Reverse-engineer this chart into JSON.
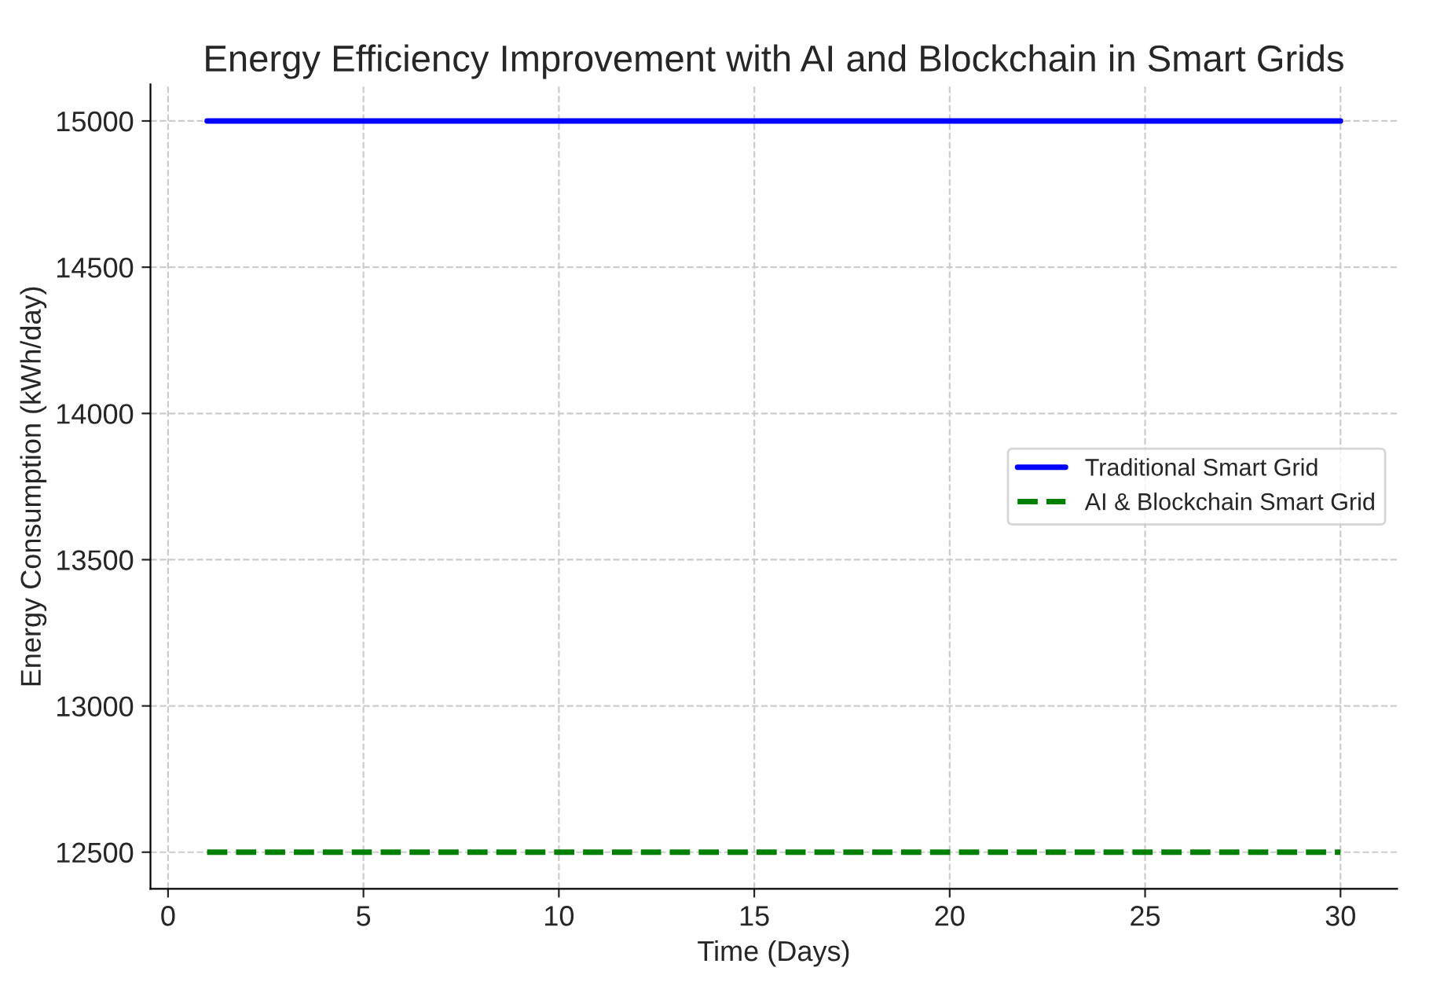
{
  "chart_data": {
    "type": "line",
    "title": "Energy Efficiency Improvement with AI and Blockchain in Smart Grids",
    "xlabel": "Time (Days)",
    "ylabel": "Energy Consumption (kWh/day)",
    "x": [
      1,
      30
    ],
    "series": [
      {
        "name": "Traditional Smart Grid",
        "color": "#0000ff",
        "line_style": "solid",
        "values": [
          15000,
          15000
        ]
      },
      {
        "name": "AI & Blockchain Smart Grid",
        "color": "#008000",
        "line_style": "dashed",
        "values": [
          12500,
          12500
        ]
      }
    ],
    "xlim": [
      -0.45,
      31.45
    ],
    "xticks": [
      0,
      5,
      10,
      15,
      20,
      25,
      30
    ],
    "ylim": [
      12375,
      15125
    ],
    "yticks": [
      12500,
      13000,
      13500,
      14000,
      14500,
      15000
    ],
    "grid": true,
    "legend": "right"
  }
}
